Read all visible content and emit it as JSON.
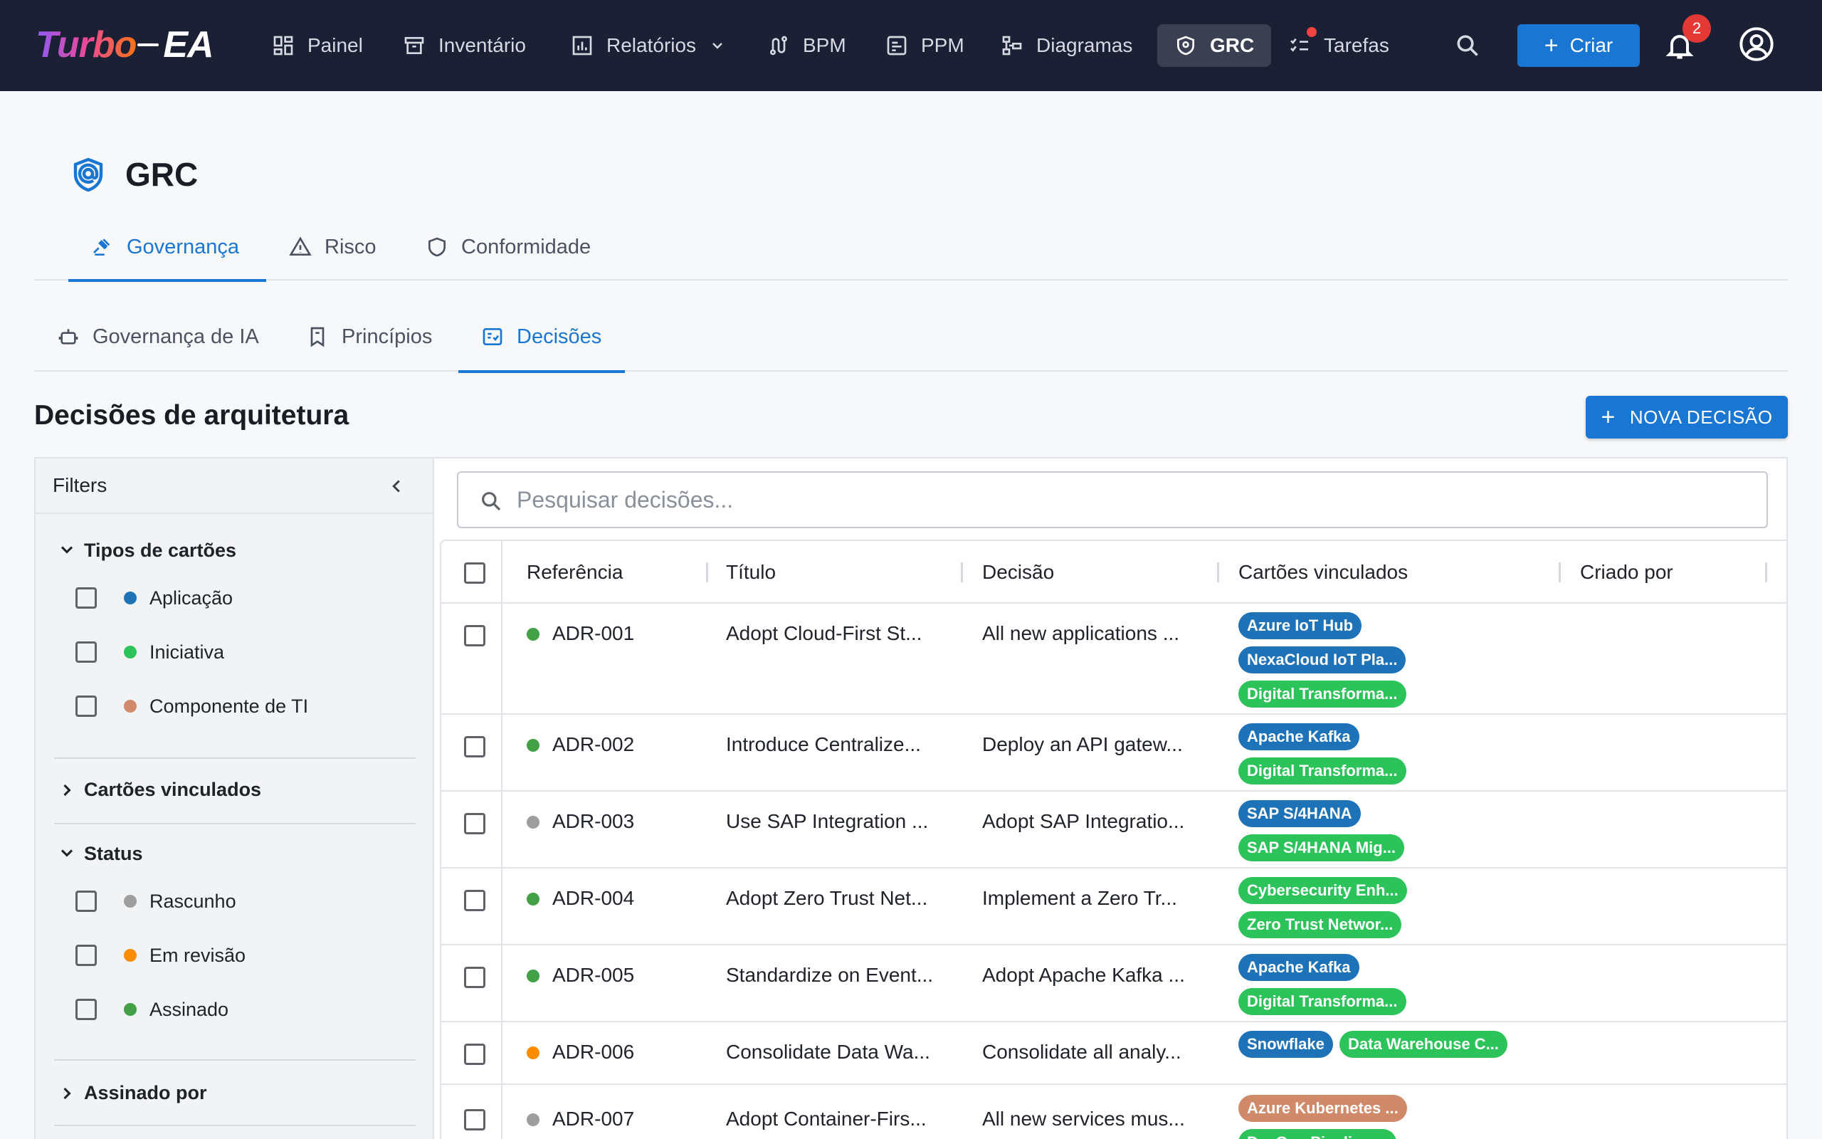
{
  "colors": {
    "nav_bg": "#1c2035",
    "accent": "#1976d2",
    "status_signed": "#43a047",
    "status_review": "#fb8c00",
    "status_draft": "#9e9e9e",
    "type_application": "#1e72b8",
    "type_initiative": "#2cc35a",
    "type_it_component": "#d08a6a"
  },
  "nav": {
    "logo_part1": "Turbo",
    "logo_part2": "EA",
    "items": [
      {
        "label": "Painel",
        "icon": "dashboard-icon"
      },
      {
        "label": "Inventário",
        "icon": "archive-icon"
      },
      {
        "label": "Relatórios",
        "icon": "report-icon"
      },
      {
        "label": "BPM",
        "icon": "route-icon"
      },
      {
        "label": "PPM",
        "icon": "board-icon"
      },
      {
        "label": "Diagramas",
        "icon": "diagram-icon"
      },
      {
        "label": "GRC",
        "icon": "shield-icon"
      },
      {
        "label": "Tarefas",
        "icon": "checklist-icon"
      }
    ],
    "create_label": "Criar",
    "notifications_count": "2"
  },
  "page": {
    "title": "GRC",
    "tabs": [
      {
        "label": "Governança",
        "icon": "gavel-icon"
      },
      {
        "label": "Risco",
        "icon": "warning-icon"
      },
      {
        "label": "Conformidade",
        "icon": "shield-outline-icon"
      }
    ],
    "subtabs": [
      {
        "label": "Governança de IA",
        "icon": "robot-icon"
      },
      {
        "label": "Princípios",
        "icon": "bookmark-icon"
      },
      {
        "label": "Decisões",
        "icon": "decision-icon"
      }
    ],
    "section_title": "Decisões de arquitetura",
    "new_button": "NOVA DECISÃO"
  },
  "filters": {
    "title": "Filters",
    "card_types": {
      "title": "Tipos de cartões",
      "items": [
        {
          "label": "Aplicação",
          "color": "#1e72b8"
        },
        {
          "label": "Iniciativa",
          "color": "#2cc35a"
        },
        {
          "label": "Componente de TI",
          "color": "#d08a6a"
        }
      ]
    },
    "linked_cards": {
      "title": "Cartões vinculados"
    },
    "status": {
      "title": "Status",
      "items": [
        {
          "label": "Rascunho",
          "color": "#9e9e9e"
        },
        {
          "label": "Em revisão",
          "color": "#fb8c00"
        },
        {
          "label": "Assinado",
          "color": "#43a047"
        }
      ]
    },
    "signed_by": {
      "title": "Assinado por"
    }
  },
  "search": {
    "placeholder": "Pesquisar decisões..."
  },
  "table": {
    "columns": [
      "Referência",
      "Título",
      "Decisão",
      "Cartões vinculados",
      "Criado por"
    ],
    "rows": [
      {
        "ref": "ADR-001",
        "status": "signed",
        "title": "Adopt Cloud-First St...",
        "decision": "All new applications ...",
        "cards": [
          {
            "label": "Azure IoT Hub",
            "type": "app"
          },
          {
            "label": "NexaCloud IoT Pla...",
            "type": "app"
          },
          {
            "label": "Digital Transforma...",
            "type": "ini"
          }
        ],
        "created_by": ""
      },
      {
        "ref": "ADR-002",
        "status": "signed",
        "title": "Introduce Centralize...",
        "decision": "Deploy an API gatew...",
        "cards": [
          {
            "label": "Apache Kafka",
            "type": "app"
          },
          {
            "label": "Digital Transforma...",
            "type": "ini"
          }
        ],
        "created_by": ""
      },
      {
        "ref": "ADR-003",
        "status": "draft",
        "title": "Use SAP Integration ...",
        "decision": "Adopt SAP Integratio...",
        "cards": [
          {
            "label": "SAP S/4HANA",
            "type": "app"
          },
          {
            "label": "SAP S/4HANA Mig...",
            "type": "ini"
          }
        ],
        "created_by": ""
      },
      {
        "ref": "ADR-004",
        "status": "signed",
        "title": "Adopt Zero Trust Net...",
        "decision": "Implement a Zero Tr...",
        "cards": [
          {
            "label": "Cybersecurity Enh...",
            "type": "ini"
          },
          {
            "label": "Zero Trust Networ...",
            "type": "ini"
          }
        ],
        "created_by": ""
      },
      {
        "ref": "ADR-005",
        "status": "signed",
        "title": "Standardize on Event...",
        "decision": "Adopt Apache Kafka ...",
        "cards": [
          {
            "label": "Apache Kafka",
            "type": "app"
          },
          {
            "label": "Digital Transforma...",
            "type": "ini"
          }
        ],
        "created_by": ""
      },
      {
        "ref": "ADR-006",
        "status": "review",
        "title": "Consolidate Data Wa...",
        "decision": "Consolidate all analy...",
        "cards": [
          {
            "label": "Snowflake",
            "type": "app"
          },
          {
            "label": "Data Warehouse C...",
            "type": "ini"
          }
        ],
        "created_by": ""
      },
      {
        "ref": "ADR-007",
        "status": "draft",
        "title": "Adopt Container-Firs...",
        "decision": "All new services mus...",
        "cards": [
          {
            "label": "Azure Kubernetes ...",
            "type": "itc"
          },
          {
            "label": "DevOps Pipeline ...",
            "type": "ini"
          }
        ],
        "created_by": ""
      }
    ]
  }
}
